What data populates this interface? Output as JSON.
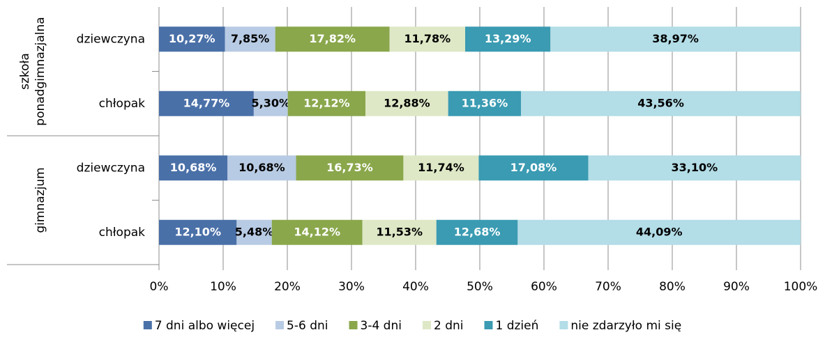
{
  "chart_data": {
    "type": "stacked_barh",
    "groups": [
      [
        "szkoła",
        "ponadgimnazjalna"
      ],
      [
        "gimnazjum"
      ]
    ],
    "categories": [
      "dziewczyna",
      "chłopak",
      "dziewczyna",
      "chłopak"
    ],
    "series": [
      {
        "name": "7 dni albo więcej",
        "color": "#4a70a8",
        "label_color": "#ffffff",
        "values": [
          10.27,
          14.77,
          10.68,
          12.1
        ],
        "value_labels": [
          "10,27%",
          "14,77%",
          "10,68%",
          "12,10%"
        ]
      },
      {
        "name": "5-6 dni",
        "color": "#b8cbe4",
        "label_color": "#000000",
        "values": [
          7.85,
          5.3,
          10.68,
          5.48
        ],
        "value_labels": [
          "7,85%",
          "5,30%",
          "10,68%",
          "5,48%"
        ]
      },
      {
        "name": "3-4 dni",
        "color": "#8aa74c",
        "label_color": "#ffffff",
        "values": [
          17.82,
          12.12,
          16.73,
          14.12
        ],
        "value_labels": [
          "17,82%",
          "12,12%",
          "16,73%",
          "14,12%"
        ]
      },
      {
        "name": "2 dni",
        "color": "#dee8c6",
        "label_color": "#000000",
        "values": [
          11.78,
          12.88,
          11.74,
          11.53
        ],
        "value_labels": [
          "11,78%",
          "12,88%",
          "11,74%",
          "11,53%"
        ]
      },
      {
        "name": "1 dzień",
        "color": "#3a9bb2",
        "label_color": "#ffffff",
        "values": [
          13.29,
          11.36,
          17.08,
          12.68
        ],
        "value_labels": [
          "13,29%",
          "11,36%",
          "17,08%",
          "12,68%"
        ]
      },
      {
        "name": "nie zdarzyło mi się",
        "color": "#b3dde7",
        "label_color": "#000000",
        "values": [
          38.97,
          43.56,
          33.1,
          44.09
        ],
        "value_labels": [
          "38,97%",
          "43,56%",
          "33,10%",
          "44,09%"
        ]
      }
    ],
    "xlim": [
      0,
      100
    ],
    "xticks": [
      {
        "value": 0,
        "label": "0%"
      },
      {
        "value": 10,
        "label": "10%"
      },
      {
        "value": 20,
        "label": "20%"
      },
      {
        "value": 30,
        "label": "30%"
      },
      {
        "value": 40,
        "label": "40%"
      },
      {
        "value": 50,
        "label": "50%"
      },
      {
        "value": 60,
        "label": "60%"
      },
      {
        "value": 70,
        "label": "70%"
      },
      {
        "value": 80,
        "label": "80%"
      },
      {
        "value": 90,
        "label": "90%"
      },
      {
        "value": 100,
        "label": "100%"
      }
    ],
    "grid": true,
    "legend": "bottom"
  }
}
